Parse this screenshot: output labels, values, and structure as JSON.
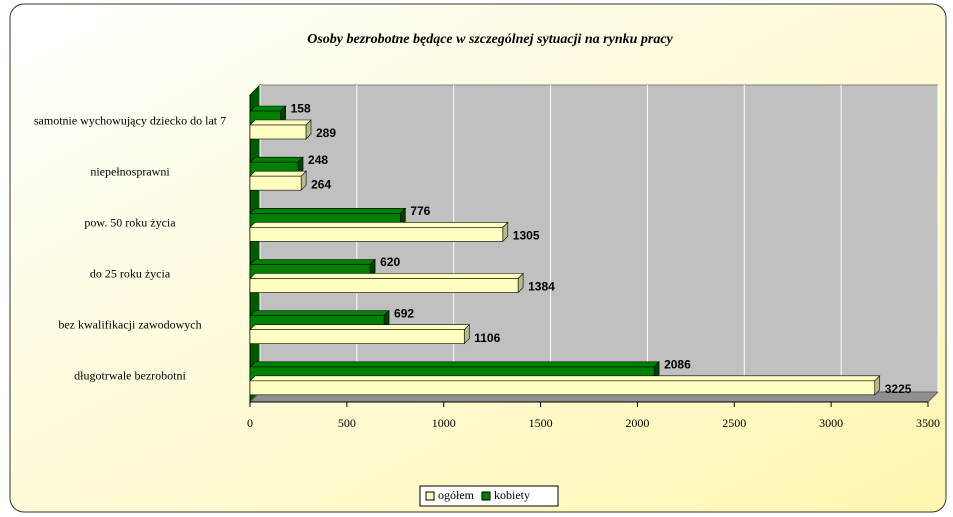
{
  "chart_data": {
    "type": "bar",
    "orientation": "horizontal",
    "title": "Osoby bezrobotne będące w szczególnej sytuacji na rynku pracy",
    "categories": [
      "samotnie wychowujący dziecko do lat 7",
      "niepełnosprawni",
      "pow. 50 roku życia",
      "do 25 roku życia",
      "bez kwalifikacji zawodowych",
      "długotrwale bezrobotni"
    ],
    "series": [
      {
        "name": "kobiety",
        "color": "#008000",
        "values": [
          158,
          248,
          776,
          620,
          692,
          2086
        ]
      },
      {
        "name": "ogółem",
        "color": "#ffffc0",
        "values": [
          289,
          264,
          1305,
          1384,
          1106,
          3225
        ]
      }
    ],
    "legend_order": [
      1,
      0
    ],
    "xlim": [
      0,
      3500
    ],
    "xticks": [
      0,
      500,
      1000,
      1500,
      2000,
      2500,
      3000,
      3500
    ],
    "grid": true
  }
}
